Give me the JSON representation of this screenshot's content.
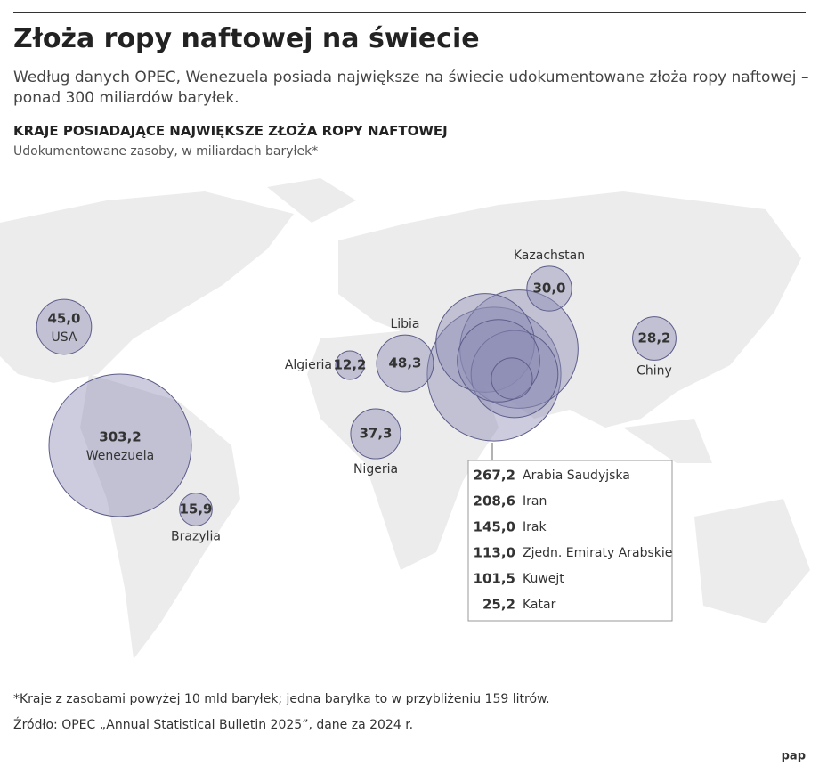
{
  "chart_data": {
    "type": "bubble-map",
    "title": "Złoża ropy naftowej na świecie",
    "subtitle": "Według danych OPEC, Wenezuela posiada największe na świecie udokumentowane złoża ropy naftowej – ponad 300 miliardów baryłek.",
    "chart_title": "KRAJE POSIADAJĄCE NAJWIĘKSZE ZŁOŻA ROPY NAFTOWEJ",
    "chart_subtitle": "Udokumentowane zasoby, w miliardach baryłek*",
    "categories": [
      "USA",
      "Wenezuela",
      "Brazylia",
      "Algieria",
      "Libia",
      "Nigeria",
      "Kazachstan",
      "Chiny",
      "Arabia Saudyjska",
      "Iran",
      "Irak",
      "Zjedn. Emiraty Arabskie",
      "Kuwejt",
      "Katar"
    ],
    "values": [
      45.0,
      303.2,
      15.9,
      12.2,
      48.3,
      37.3,
      30.0,
      28.2,
      267.2,
      208.6,
      145.0,
      113.0,
      101.5,
      25.2
    ],
    "value_labels": [
      "45,0",
      "303,2",
      "15,9",
      "12,2",
      "48,3",
      "37,3",
      "30,0",
      "28,2",
      "267,2",
      "208,6",
      "145,0",
      "113,0",
      "101,5",
      "25,2"
    ],
    "color": "#8e8eb6",
    "footnote": "*Kraje z zasobami powyżej 10 mld baryłek; jedna baryłka to w przybliżeniu 159 litrów.",
    "source": "Źródło:  OPEC „Annual Statistical Bulletin 2025”, dane za 2024 r.",
    "logo": "pap"
  }
}
